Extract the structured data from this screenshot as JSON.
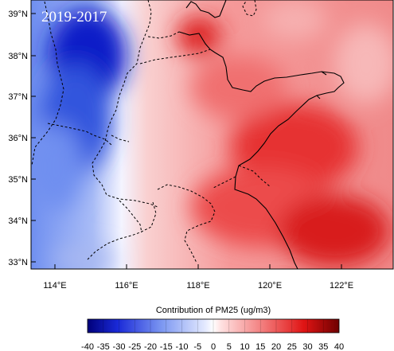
{
  "map": {
    "panel_label": "2019-2017",
    "lon_ticks": [
      "114°E",
      "116°E",
      "118°E",
      "120°E",
      "122°E"
    ],
    "lat_ticks": [
      "39°N",
      "38°N",
      "37°N",
      "36°N",
      "35°N",
      "34°N",
      "33°N"
    ],
    "colors": {
      "blue_dark": "#0a10b0",
      "blue_mid": "#5c7ae8",
      "neutral": "#ffffff",
      "red_mid": "#f04848",
      "red_dark": "#7a0000"
    }
  },
  "colorbar": {
    "title": "Contribution of PM25  (ug/m3)",
    "labels": [
      "-40",
      "-35",
      "-30",
      "-25",
      "-20",
      "-15",
      "-10",
      "-5",
      "0",
      "5",
      "10",
      "15",
      "20",
      "25",
      "30",
      "35",
      "40"
    ]
  }
}
